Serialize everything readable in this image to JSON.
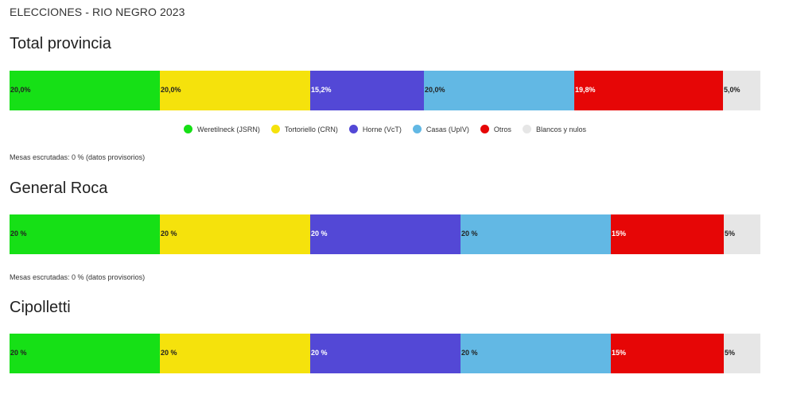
{
  "page_title": "ELECCIONES - RIO NEGRO 2023",
  "colors": {
    "weretilneck": "#16e016",
    "tortoriello": "#f5e20c",
    "horne": "#5348d6",
    "casas": "#62b8e4",
    "otros": "#e60606",
    "blancos": "#e6e6e6"
  },
  "legend": [
    {
      "label": "Weretilneck (JSRN)",
      "color": "#16e016"
    },
    {
      "label": "Tortoriello (CRN)",
      "color": "#f5e20c"
    },
    {
      "label": "Horne (VcT)",
      "color": "#5348d6"
    },
    {
      "label": "Casas (UpIV)",
      "color": "#62b8e4"
    },
    {
      "label": "Otros",
      "color": "#e60606"
    },
    {
      "label": "Blancos y nulos",
      "color": "#e6e6e6"
    }
  ],
  "chart_data": [
    {
      "type": "bar",
      "title": "Total provincia",
      "categories": [
        "Weretilneck (JSRN)",
        "Tortoriello (CRN)",
        "Horne (VcT)",
        "Casas (UpIV)",
        "Otros",
        "Blancos y nulos"
      ],
      "values": [
        20.0,
        20.0,
        15.2,
        20.0,
        19.8,
        5.0
      ],
      "labels": [
        "20,0%",
        "20,0%",
        "15,2%",
        "20,0%",
        "19,8%",
        "5,0%"
      ],
      "stacked": true,
      "footer": "Mesas escrutadas: 0 % (datos provisorios)"
    },
    {
      "type": "bar",
      "title": "General Roca",
      "categories": [
        "Weretilneck (JSRN)",
        "Tortoriello (CRN)",
        "Horne (VcT)",
        "Casas (UpIV)",
        "Otros",
        "Blancos y nulos"
      ],
      "values": [
        20,
        20,
        20,
        20,
        15,
        5
      ],
      "labels": [
        "20 %",
        "20 %",
        "20 %",
        "20 %",
        "15%",
        "5%"
      ],
      "stacked": true,
      "footer": "Mesas escrutadas: 0 %  (datos provisorios)"
    },
    {
      "type": "bar",
      "title": "Cipolletti",
      "categories": [
        "Weretilneck (JSRN)",
        "Tortoriello (CRN)",
        "Horne (VcT)",
        "Casas (UpIV)",
        "Otros",
        "Blancos y nulos"
      ],
      "values": [
        20,
        20,
        20,
        20,
        15,
        5
      ],
      "labels": [
        "20 %",
        "20 %",
        "20 %",
        "20 %",
        "15%",
        "5%"
      ],
      "stacked": true,
      "footer": ""
    }
  ]
}
